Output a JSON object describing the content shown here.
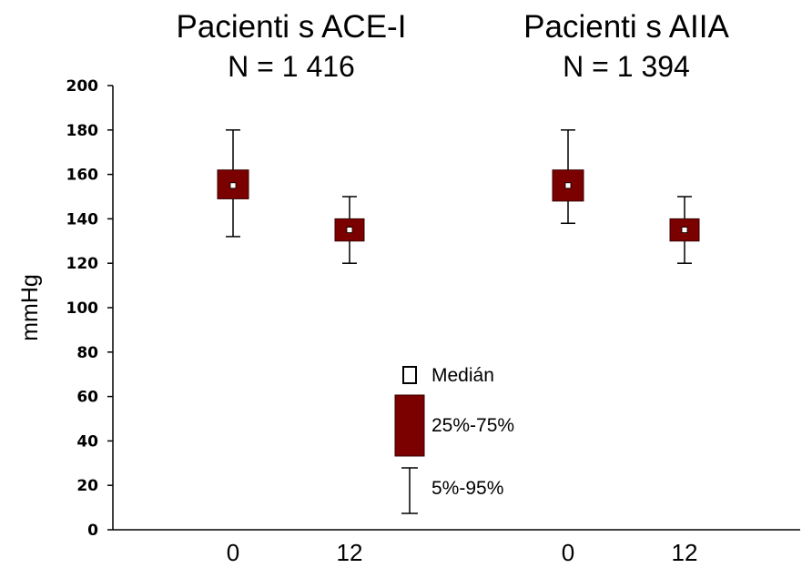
{
  "chart_data": {
    "type": "box",
    "ylabel": "mmHg",
    "ylim": [
      0,
      200
    ],
    "yticks": [
      "0",
      "20",
      "40",
      "60",
      "80",
      "100",
      "120",
      "140",
      "160",
      "180",
      "200"
    ],
    "groups": [
      {
        "title": "Pacienti s ACE-I",
        "subtitle": "N = 1 416",
        "categories": [
          "0",
          "12"
        ],
        "boxes": [
          {
            "x": "0",
            "p5": 132,
            "q1": 149,
            "median": 155,
            "q3": 162,
            "p95": 180
          },
          {
            "x": "12",
            "p5": 120,
            "q1": 130,
            "median": 135,
            "q3": 140,
            "p95": 150
          }
        ]
      },
      {
        "title": "Pacienti s AIIA",
        "subtitle": "N = 1 394",
        "categories": [
          "0",
          "12"
        ],
        "boxes": [
          {
            "x": "0",
            "p5": 138,
            "q1": 148,
            "median": 155,
            "q3": 162,
            "p95": 180
          },
          {
            "x": "12",
            "p5": 120,
            "q1": 130,
            "median": 135,
            "q3": 140,
            "p95": 150
          }
        ]
      }
    ],
    "legend": {
      "median": "Medián",
      "iqr": "25%-75%",
      "range": "5%-95%"
    },
    "colors": {
      "box_fill": "#7b0000",
      "median_fill": "#ffffff",
      "line": "#000000"
    }
  }
}
